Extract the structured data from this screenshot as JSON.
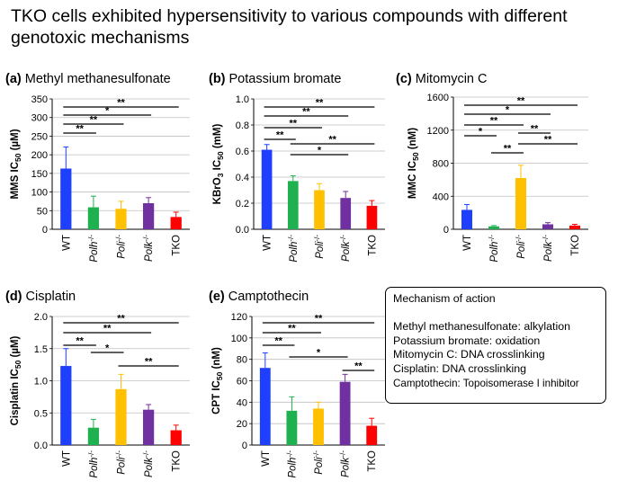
{
  "title": "TKO cells exhibited hypersensitivity to various compounds with different genotoxic mechanisms",
  "mechanism_box": {
    "heading": "Mechanism of action",
    "lines": [
      "Methyl methanesulfonate:  alkylation",
      "Potassium bromate: oxidation",
      "Mitomycin C: DNA crosslinking",
      "Cisplatin: DNA crosslinking",
      "Camptothecin: Topoisomerase I inhibitor"
    ]
  },
  "colors": {
    "WT": "#1f3fff",
    "Polh": "#1fb050",
    "Poli": "#ffc000",
    "Polk": "#7030a0",
    "TKO": "#ff0000"
  },
  "chart_data": [
    {
      "type": "bar",
      "panel": "(a)",
      "title": "Methyl methanesulfonate",
      "ylabel": "MMS IC50 (µM)",
      "ylabel_main": "MMS IC",
      "ylabel_sub": "50",
      "ylabel_unit": " (µM)",
      "categories": [
        "WT",
        "Polh-/-",
        "Poli-/-",
        "Polk-/-",
        "TKO"
      ],
      "values": [
        163,
        59,
        55,
        70,
        33
      ],
      "errors": [
        58,
        30,
        20,
        15,
        13
      ],
      "ylim": [
        0,
        350
      ],
      "yticks": [
        "0",
        "50",
        "100",
        "150",
        "200",
        "250",
        "300",
        "350"
      ],
      "grid": true,
      "significance": [
        {
          "from": "WT",
          "to": "Polh-/-",
          "label": "**"
        },
        {
          "from": "WT",
          "to": "Poli-/-",
          "label": "**"
        },
        {
          "from": "WT",
          "to": "Polk-/-",
          "label": "*"
        },
        {
          "from": "WT",
          "to": "TKO",
          "label": "**"
        }
      ]
    },
    {
      "type": "bar",
      "panel": "(b)",
      "title": "Potassium bromate",
      "ylabel": "KBrO3 IC50 (mM)",
      "ylabel_main": "KBrO",
      "ylabel_sub": "3",
      "ylabel_mid": " IC",
      "ylabel_sub2": "50",
      "ylabel_unit": " (mM)",
      "categories": [
        "WT",
        "Polh-/-",
        "Poli-/-",
        "Polk-/-",
        "TKO"
      ],
      "values": [
        0.61,
        0.37,
        0.3,
        0.24,
        0.18
      ],
      "errors": [
        0.04,
        0.04,
        0.05,
        0.05,
        0.04
      ],
      "ylim": [
        0,
        1.0
      ],
      "yticks": [
        "0.0",
        "0.2",
        "0.4",
        "0.6",
        "0.8",
        "1.0"
      ],
      "grid": true,
      "significance": [
        {
          "from": "WT",
          "to": "Polh-/-",
          "label": "**"
        },
        {
          "from": "WT",
          "to": "Poli-/-",
          "label": "**"
        },
        {
          "from": "WT",
          "to": "Polk-/-",
          "label": "**"
        },
        {
          "from": "WT",
          "to": "TKO",
          "label": "**"
        },
        {
          "from": "Polh-/-",
          "to": "TKO",
          "label": "**"
        },
        {
          "from": "Polh-/-",
          "to": "Polk-/-",
          "label": "*"
        }
      ]
    },
    {
      "type": "bar",
      "panel": "(c)",
      "title": "Mitomycin C",
      "ylabel": "MMC IC50 (nM)",
      "ylabel_main": "MMC IC",
      "ylabel_sub": "50",
      "ylabel_unit": " (nM)",
      "categories": [
        "WT",
        "Polh-/-",
        "Poli-/-",
        "Polk-/-",
        "TKO"
      ],
      "values": [
        235,
        35,
        620,
        60,
        45
      ],
      "errors": [
        65,
        10,
        155,
        20,
        15
      ],
      "ylim": [
        0,
        1600
      ],
      "yticks": [
        "0",
        "400",
        "800",
        "1200",
        "1600"
      ],
      "grid": true,
      "significance": [
        {
          "from": "WT",
          "to": "Polh-/-",
          "label": "*"
        },
        {
          "from": "WT",
          "to": "Poli-/-",
          "label": "**"
        },
        {
          "from": "WT",
          "to": "Polk-/-",
          "label": "*"
        },
        {
          "from": "WT",
          "to": "TKO",
          "label": "**"
        },
        {
          "from": "Polh-/-",
          "to": "Poli-/-",
          "label": "**"
        },
        {
          "from": "Poli-/-",
          "to": "TKO",
          "label": "**"
        },
        {
          "from": "Poli-/-",
          "to": "Polk-/-",
          "label": "**"
        }
      ]
    },
    {
      "type": "bar",
      "panel": "(d)",
      "title": "Cisplatin",
      "ylabel": "Cisplatin IC50 (µM)",
      "ylabel_main": "Cisplatin IC",
      "ylabel_sub": "50",
      "ylabel_unit": " (µM)",
      "categories": [
        "WT",
        "Polh-/-",
        "Poli-/-",
        "Polk-/-",
        "TKO"
      ],
      "values": [
        1.23,
        0.27,
        0.87,
        0.55,
        0.23
      ],
      "errors": [
        0.27,
        0.13,
        0.23,
        0.08,
        0.08
      ],
      "ylim": [
        0,
        2.0
      ],
      "yticks": [
        "0.0",
        "0.5",
        "1.0",
        "1.5",
        "2.0"
      ],
      "grid": true,
      "significance": [
        {
          "from": "WT",
          "to": "Polh-/-",
          "label": "**"
        },
        {
          "from": "WT",
          "to": "Polk-/-",
          "label": "**"
        },
        {
          "from": "WT",
          "to": "TKO",
          "label": "**"
        },
        {
          "from": "Polh-/-",
          "to": "Poli-/-",
          "label": "*"
        },
        {
          "from": "Poli-/-",
          "to": "TKO",
          "label": "**"
        }
      ]
    },
    {
      "type": "bar",
      "panel": "(e)",
      "title": "Camptothecin",
      "ylabel": "CPT IC50 (nM)",
      "ylabel_main": "CPT IC",
      "ylabel_sub": "50",
      "ylabel_unit": " (nM)",
      "categories": [
        "WT",
        "Polh-/-",
        "Poli-/-",
        "Polk-/-",
        "TKO"
      ],
      "values": [
        72,
        32,
        34,
        59,
        18
      ],
      "errors": [
        14,
        13,
        6,
        7,
        7
      ],
      "ylim": [
        0,
        120
      ],
      "yticks": [
        "0",
        "20",
        "40",
        "60",
        "80",
        "100",
        "120"
      ],
      "grid": true,
      "significance": [
        {
          "from": "WT",
          "to": "Polh-/-",
          "label": "**"
        },
        {
          "from": "WT",
          "to": "Poli-/-",
          "label": "**"
        },
        {
          "from": "WT",
          "to": "TKO",
          "label": "**"
        },
        {
          "from": "Polh-/-",
          "to": "Polk-/-",
          "label": "*"
        },
        {
          "from": "Polk-/-",
          "to": "TKO",
          "label": "**"
        }
      ]
    }
  ]
}
